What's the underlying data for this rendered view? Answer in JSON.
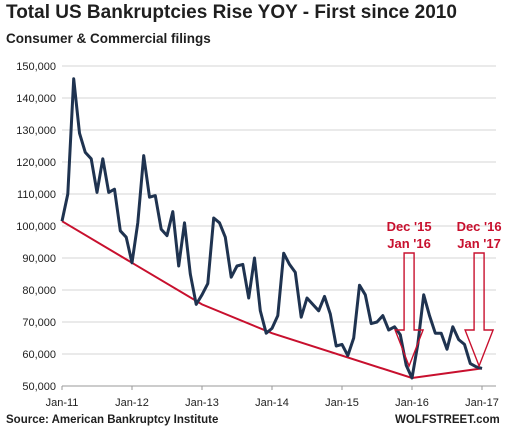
{
  "chart_data": {
    "type": "line",
    "title": "Total US Bankruptcies Rise YOY - First since 2010",
    "subtitle": "Consumer & Commercial filings",
    "xlabel": "",
    "ylabel": "",
    "ylim": [
      50000,
      150000
    ],
    "yticks": [
      "50,000",
      "60,000",
      "70,000",
      "80,000",
      "90,000",
      "100,000",
      "110,000",
      "120,000",
      "130,000",
      "140,000",
      "150,000"
    ],
    "xticks": [
      "Jan-11",
      "Jan-12",
      "Jan-13",
      "Jan-14",
      "Jan-15",
      "Jan-16",
      "Jan-17"
    ],
    "grid": "horizontal",
    "series": [
      {
        "color": "#1f3350",
        "x": [
          "2011-01",
          "2011-02",
          "2011-03",
          "2011-04",
          "2011-05",
          "2011-06",
          "2011-07",
          "2011-08",
          "2011-09",
          "2011-10",
          "2011-11",
          "2011-12",
          "2012-01",
          "2012-02",
          "2012-03",
          "2012-04",
          "2012-05",
          "2012-06",
          "2012-07",
          "2012-08",
          "2012-09",
          "2012-10",
          "2012-11",
          "2012-12",
          "2013-01",
          "2013-02",
          "2013-03",
          "2013-04",
          "2013-05",
          "2013-06",
          "2013-07",
          "2013-08",
          "2013-09",
          "2013-10",
          "2013-11",
          "2013-12",
          "2014-01",
          "2014-02",
          "2014-03",
          "2014-04",
          "2014-05",
          "2014-06",
          "2014-07",
          "2014-08",
          "2014-09",
          "2014-10",
          "2014-11",
          "2014-12",
          "2015-01",
          "2015-02",
          "2015-03",
          "2015-04",
          "2015-05",
          "2015-06",
          "2015-07",
          "2015-08",
          "2015-09",
          "2015-10",
          "2015-11",
          "2015-12",
          "2016-01",
          "2016-02",
          "2016-03",
          "2016-04",
          "2016-05",
          "2016-06",
          "2016-07",
          "2016-08",
          "2016-09",
          "2016-10",
          "2016-11",
          "2016-12",
          "2017-01"
        ],
        "values": [
          101500,
          110000,
          146000,
          129000,
          123000,
          121000,
          110500,
          121000,
          110500,
          111500,
          98500,
          96500,
          88500,
          101000,
          122000,
          109000,
          109500,
          99000,
          97000,
          104500,
          87500,
          101000,
          85000,
          75500,
          78500,
          82000,
          102500,
          101000,
          96500,
          84000,
          87500,
          88000,
          77500,
          90000,
          73500,
          66500,
          68000,
          72000,
          91500,
          88000,
          85500,
          71500,
          77500,
          75500,
          73500,
          78000,
          72500,
          62500,
          63000,
          59500,
          65000,
          81500,
          78500,
          69500,
          70000,
          72000,
          67500,
          68500,
          66000,
          56500,
          52500,
          63000,
          78500,
          72000,
          66500,
          66500,
          61500,
          68500,
          64500,
          63000,
          57000,
          56000,
          55500
        ]
      }
    ],
    "trendline": {
      "color": "#c8102e",
      "x": [
        "2011-01",
        "2012-01",
        "2013-01",
        "2014-01",
        "2016-01",
        "2017-01"
      ],
      "values": [
        101500,
        88500,
        75500,
        66500,
        52500,
        55500
      ]
    },
    "annotations": [
      {
        "text": "Dec '15",
        "x": "2015-12"
      },
      {
        "text": "Jan '16",
        "x": "2016-01"
      },
      {
        "text": "Dec '16",
        "x": "2016-12"
      },
      {
        "text": "Jan '17",
        "x": "2017-01"
      }
    ]
  },
  "footer": {
    "source": "Source: American Bankruptcy Institute",
    "watermark": "WOLFSTREET.com"
  }
}
